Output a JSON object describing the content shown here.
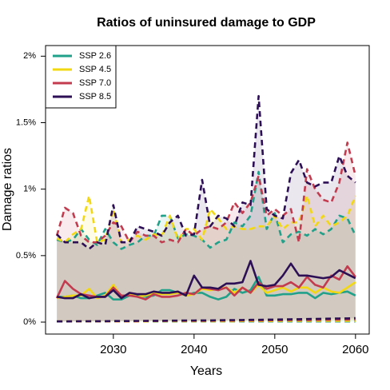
{
  "chart_data": {
    "type": "line",
    "title": "Ratios of uninsured damage to GDP",
    "x_label": "Years",
    "y_label": "Damage ratios",
    "x": [
      2023,
      2024,
      2025,
      2026,
      2027,
      2028,
      2029,
      2030,
      2031,
      2032,
      2033,
      2034,
      2035,
      2036,
      2037,
      2038,
      2039,
      2040,
      2041,
      2042,
      2043,
      2044,
      2045,
      2046,
      2047,
      2048,
      2049,
      2050,
      2051,
      2052,
      2053,
      2054,
      2055,
      2056,
      2057,
      2058,
      2059,
      2060
    ],
    "xlim": [
      2021.6,
      2061.7
    ],
    "xticks": [
      2030,
      2040,
      2050,
      2060
    ],
    "ylim": [
      -0.09,
      2.08
    ],
    "yticks": [
      {
        "value": 0,
        "label": "0%"
      },
      {
        "value": 0.5,
        "label": "0.5%"
      },
      {
        "value": 1,
        "label": "1%"
      },
      {
        "value": 1.5,
        "label": "1.5%"
      },
      {
        "value": 2,
        "label": "2%"
      }
    ],
    "legend_position": "top-left",
    "series": [
      {
        "name": "SSP 2.6",
        "color": "#21a08a",
        "values": [
          0.19,
          0.19,
          0.2,
          0.18,
          0.18,
          0.2,
          0.22,
          0.17,
          0.17,
          0.2,
          0.2,
          0.19,
          0.2,
          0.24,
          0.24,
          0.22,
          0.2,
          0.22,
          0.22,
          0.19,
          0.17,
          0.19,
          0.25,
          0.22,
          0.24,
          0.34,
          0.2,
          0.2,
          0.21,
          0.21,
          0.22,
          0.22,
          0.18,
          0.22,
          0.21,
          0.22,
          0.23,
          0.2
        ],
        "upper": [
          0.62,
          0.6,
          0.62,
          0.7,
          0.62,
          0.58,
          0.7,
          0.6,
          0.55,
          0.58,
          0.6,
          0.65,
          0.65,
          0.8,
          0.8,
          0.63,
          0.66,
          0.65,
          0.62,
          0.56,
          0.6,
          0.62,
          0.75,
          0.72,
          0.8,
          1.13,
          0.7,
          0.82,
          0.6,
          0.66,
          0.68,
          0.65,
          0.7,
          0.66,
          0.7,
          0.8,
          0.78,
          0.65
        ],
        "lower": [
          0.005,
          0.005,
          0.005,
          0.005,
          0.005,
          0.005,
          0.005,
          0.005,
          0.005,
          0.005,
          0.005,
          0.005,
          0.005,
          0.005,
          0.005,
          0.005,
          0.005,
          0.005,
          0.005,
          0.005,
          0.005,
          0.005,
          0.005,
          0.005,
          0.005,
          0.005,
          0.005,
          0.005,
          0.005,
          0.005,
          0.005,
          0.005,
          0.005,
          0.005,
          0.005,
          0.005,
          0.005,
          0.005
        ]
      },
      {
        "name": "SSP 4.5",
        "color": "#f2d813",
        "values": [
          0.18,
          0.19,
          0.2,
          0.2,
          0.25,
          0.18,
          0.2,
          0.28,
          0.19,
          0.21,
          0.19,
          0.2,
          0.22,
          0.21,
          0.21,
          0.22,
          0.2,
          0.21,
          0.25,
          0.24,
          0.25,
          0.26,
          0.22,
          0.26,
          0.22,
          0.28,
          0.22,
          0.24,
          0.26,
          0.23,
          0.26,
          0.26,
          0.22,
          0.26,
          0.23,
          0.22,
          0.26,
          0.3
        ],
        "upper": [
          0.63,
          0.6,
          0.66,
          0.7,
          0.95,
          0.6,
          0.62,
          0.85,
          0.6,
          0.62,
          0.65,
          0.62,
          0.66,
          0.65,
          0.8,
          0.62,
          0.7,
          0.7,
          0.62,
          0.85,
          0.78,
          0.7,
          0.72,
          0.7,
          0.7,
          0.72,
          0.72,
          0.8,
          0.7,
          0.75,
          0.75,
          0.95,
          0.72,
          0.8,
          0.72,
          0.75,
          0.8,
          0.95
        ],
        "lower": [
          0.005,
          0.005,
          0.005,
          0.005,
          0.005,
          0.005,
          0.005,
          0.005,
          0.005,
          0.005,
          0.005,
          0.005,
          0.006,
          0.006,
          0.006,
          0.006,
          0.006,
          0.006,
          0.007,
          0.007,
          0.007,
          0.007,
          0.007,
          0.008,
          0.008,
          0.008,
          0.008,
          0.008,
          0.009,
          0.009,
          0.009,
          0.009,
          0.01,
          0.01,
          0.01,
          0.01,
          0.01,
          0.01
        ]
      },
      {
        "name": "SSP 7.0",
        "color": "#c23b4e",
        "values": [
          0.18,
          0.31,
          0.25,
          0.21,
          0.2,
          0.19,
          0.19,
          0.26,
          0.2,
          0.2,
          0.19,
          0.17,
          0.21,
          0.19,
          0.19,
          0.2,
          0.22,
          0.21,
          0.26,
          0.25,
          0.24,
          0.26,
          0.2,
          0.26,
          0.22,
          0.3,
          0.25,
          0.27,
          0.27,
          0.3,
          0.26,
          0.34,
          0.28,
          0.26,
          0.35,
          0.32,
          0.42,
          0.34
        ],
        "upper": [
          0.65,
          0.86,
          0.82,
          0.65,
          0.6,
          0.6,
          0.65,
          0.75,
          0.72,
          0.6,
          0.68,
          0.65,
          0.65,
          0.6,
          0.62,
          0.6,
          0.7,
          0.65,
          0.7,
          0.72,
          0.7,
          0.75,
          0.9,
          0.82,
          0.9,
          1.1,
          0.8,
          0.85,
          0.8,
          0.85,
          0.6,
          1.15,
          1.0,
          0.92,
          0.9,
          1.05,
          1.35,
          1.1
        ],
        "lower": [
          0.005,
          0.005,
          0.005,
          0.006,
          0.006,
          0.006,
          0.006,
          0.007,
          0.007,
          0.007,
          0.007,
          0.008,
          0.008,
          0.008,
          0.009,
          0.009,
          0.009,
          0.01,
          0.01,
          0.01,
          0.011,
          0.011,
          0.011,
          0.012,
          0.012,
          0.013,
          0.013,
          0.014,
          0.014,
          0.015,
          0.015,
          0.016,
          0.016,
          0.017,
          0.017,
          0.018,
          0.019,
          0.02
        ]
      },
      {
        "name": "SSP 8.5",
        "color": "#2d0f55",
        "values": [
          0.19,
          0.18,
          0.18,
          0.21,
          0.18,
          0.19,
          0.19,
          0.24,
          0.18,
          0.22,
          0.21,
          0.21,
          0.23,
          0.22,
          0.22,
          0.23,
          0.2,
          0.35,
          0.26,
          0.26,
          0.25,
          0.29,
          0.29,
          0.3,
          0.46,
          0.28,
          0.27,
          0.28,
          0.35,
          0.44,
          0.35,
          0.35,
          0.34,
          0.33,
          0.34,
          0.39,
          0.36,
          0.33
        ],
        "upper": [
          0.66,
          0.6,
          0.6,
          0.6,
          0.55,
          0.6,
          0.58,
          0.88,
          0.6,
          0.6,
          0.72,
          0.7,
          0.68,
          0.65,
          0.75,
          0.8,
          0.65,
          0.66,
          1.07,
          0.72,
          0.8,
          0.78,
          0.72,
          0.9,
          0.88,
          1.7,
          0.85,
          0.8,
          0.78,
          1.12,
          1.22,
          1.05,
          1.02,
          1.05,
          1.05,
          1.25,
          1.1,
          1.05
        ],
        "lower": [
          0.005,
          0.005,
          0.006,
          0.006,
          0.006,
          0.007,
          0.007,
          0.008,
          0.008,
          0.008,
          0.009,
          0.009,
          0.01,
          0.01,
          0.011,
          0.011,
          0.012,
          0.012,
          0.013,
          0.013,
          0.014,
          0.015,
          0.015,
          0.016,
          0.017,
          0.017,
          0.018,
          0.019,
          0.02,
          0.021,
          0.022,
          0.023,
          0.024,
          0.025,
          0.026,
          0.027,
          0.028,
          0.03
        ]
      }
    ]
  }
}
